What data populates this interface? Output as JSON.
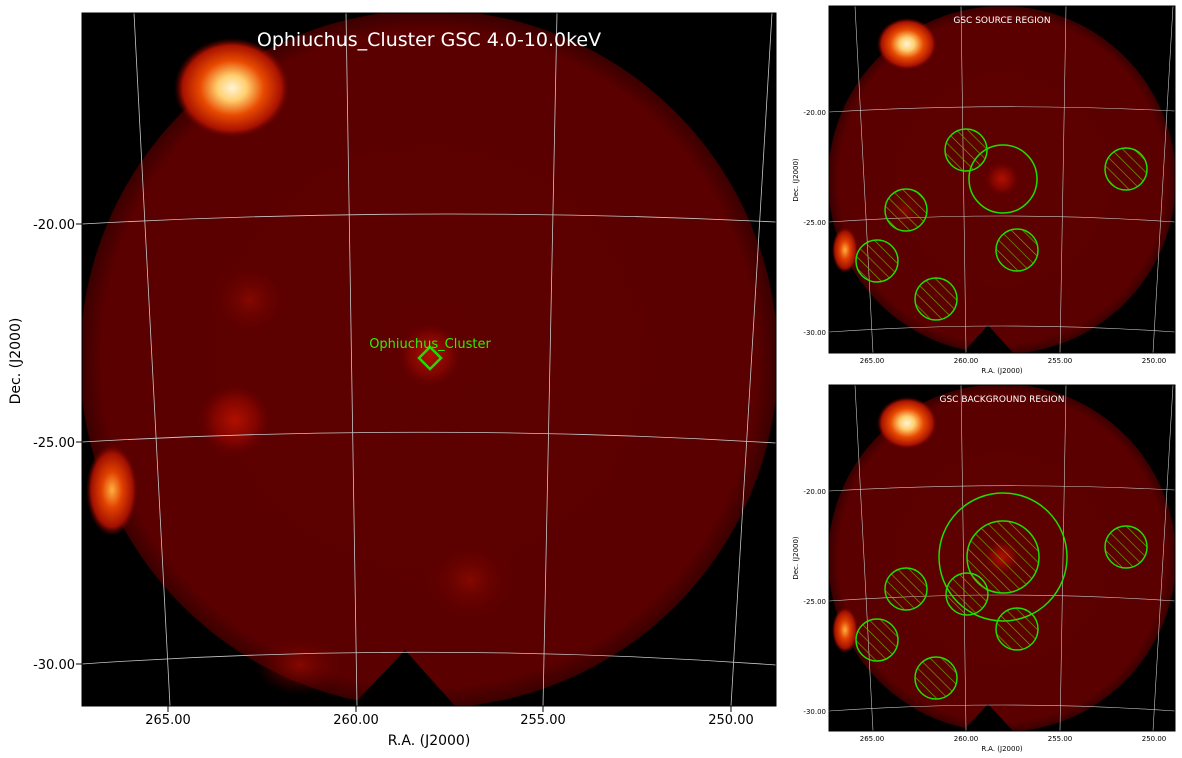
{
  "main": {
    "title": "Ophiuchus_Cluster GSC 4.0-10.0keV",
    "target_label": "Ophiuchus_Cluster",
    "xlabel": "R.A. (J2000)",
    "ylabel": "Dec. (J2000)",
    "xticks": [
      "265.00",
      "260.00",
      "255.00",
      "250.00"
    ],
    "yticks": [
      "-20.00",
      "-25.00",
      "-30.00"
    ]
  },
  "source_panel": {
    "title": "GSC SOURCE REGION",
    "xlabel": "R.A. (J2000)",
    "ylabel": "Dec. (J2000)",
    "xticks": [
      "265.00",
      "260.00",
      "255.00",
      "250.00"
    ],
    "yticks": [
      "-20.00",
      "-25.00",
      "-30.00"
    ]
  },
  "background_panel": {
    "title": "GSC BACKGROUND REGION",
    "xlabel": "R.A. (J2000)",
    "ylabel": "Dec. (J2000)",
    "xticks": [
      "265.00",
      "260.00",
      "255.00",
      "250.00"
    ],
    "yticks": [
      "-20.00",
      "-25.00",
      "-30.00"
    ]
  },
  "colors": {
    "map_base": "#5e0000",
    "region": "#22dd00",
    "label": "#33ee00",
    "grid": "#c8c8c8",
    "title_text": "#ffffff"
  }
}
